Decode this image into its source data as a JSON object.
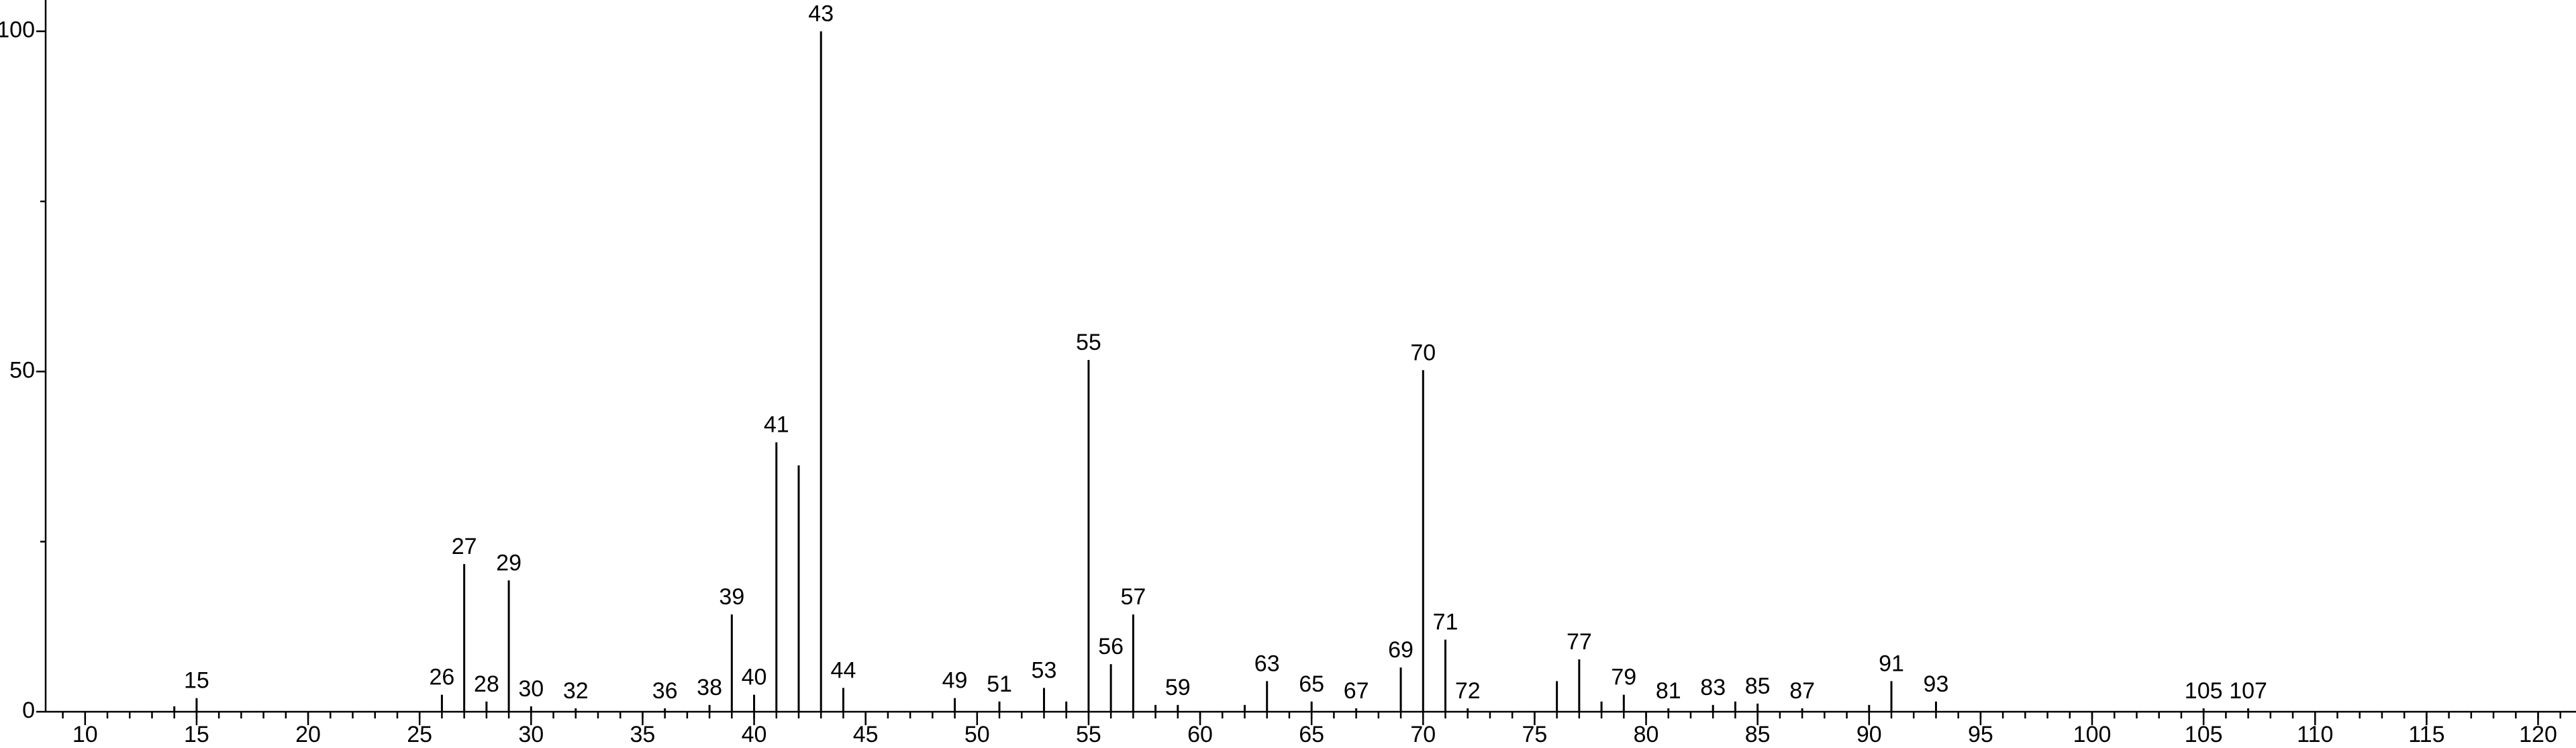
{
  "chart_data": {
    "type": "stem",
    "x": [
      14,
      15,
      26,
      27,
      28,
      29,
      30,
      32,
      36,
      38,
      39,
      40,
      41,
      42,
      43,
      44,
      49,
      51,
      53,
      54,
      55,
      56,
      57,
      58,
      59,
      62,
      63,
      65,
      67,
      69,
      70,
      71,
      72,
      76,
      77,
      78,
      79,
      81,
      83,
      84,
      85,
      87,
      90,
      91,
      93,
      105,
      107
    ],
    "values": [
      0.8,
      2,
      2.5,
      21.7,
      1.5,
      19.3,
      0.8,
      0.5,
      0.5,
      1,
      14.3,
      2.5,
      39.6,
      36.2,
      100,
      3.5,
      2,
      1.5,
      3.5,
      1.5,
      51.7,
      7,
      14.3,
      1,
      1,
      1,
      4.5,
      1.5,
      0.5,
      6.5,
      50.2,
      10.6,
      0.5,
      4.5,
      7.7,
      1.5,
      2.5,
      0.5,
      1,
      1.5,
      1.2,
      0.5,
      1,
      4.5,
      1.5,
      0.5,
      0.5
    ],
    "point_labels": [
      null,
      15,
      26,
      27,
      28,
      29,
      30,
      32,
      36,
      38,
      39,
      40,
      41,
      null,
      43,
      44,
      49,
      51,
      53,
      null,
      55,
      56,
      57,
      null,
      59,
      null,
      63,
      65,
      67,
      69,
      70,
      71,
      72,
      null,
      77,
      null,
      79,
      81,
      83,
      null,
      85,
      87,
      null,
      91,
      93,
      105,
      107
    ],
    "color": "#000000",
    "xlim": [
      8.23,
      121.7
    ],
    "xticks": [
      10,
      15,
      20,
      25,
      30,
      35,
      40,
      45,
      50,
      55,
      60,
      65,
      70,
      75,
      80,
      85,
      90,
      95,
      100,
      105,
      110,
      115,
      120
    ],
    "xminor_step": 1,
    "ylim": [
      0,
      104.6
    ],
    "yticks": [
      0,
      50,
      100
    ],
    "yminor_ticks": [
      25,
      75
    ]
  }
}
